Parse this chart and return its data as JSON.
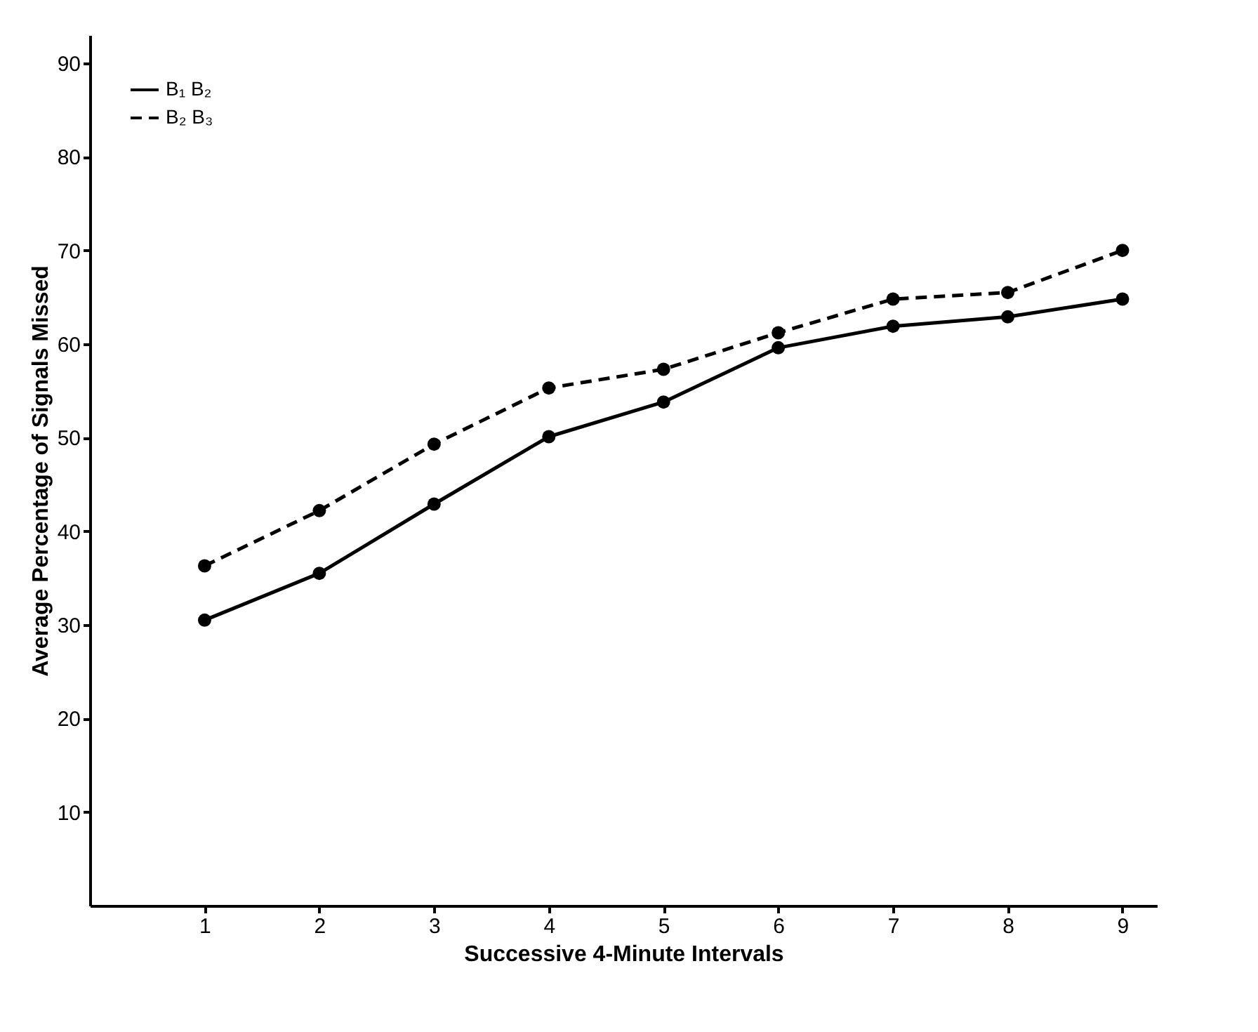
{
  "chart_data": {
    "type": "line",
    "xlabel": "Successive 4-Minute Intervals",
    "ylabel": "Average Percentage of Signals Missed",
    "x": [
      1,
      2,
      3,
      4,
      5,
      6,
      7,
      8,
      9
    ],
    "series": [
      {
        "name": "B₁ B₂",
        "color": "#000000",
        "line_style": "solid",
        "values": [
          30.5,
          35.5,
          42.9,
          50.1,
          53.8,
          59.6,
          61.9,
          62.9,
          64.8
        ]
      },
      {
        "name": "B₂ B₃",
        "color": "#000000",
        "line_style": "dashed",
        "values": [
          36.3,
          42.2,
          49.3,
          55.3,
          57.3,
          61.2,
          64.8,
          65.5,
          70.0
        ]
      }
    ],
    "xlim": [
      0,
      9.3
    ],
    "xticks": [
      1,
      2,
      3,
      4,
      5,
      6,
      7,
      8,
      9
    ],
    "ylim": [
      0,
      93
    ],
    "yticks": [
      10,
      20,
      30,
      40,
      50,
      60,
      70,
      80,
      90
    ],
    "grid": false,
    "legend": "top left",
    "marker": "circle"
  }
}
